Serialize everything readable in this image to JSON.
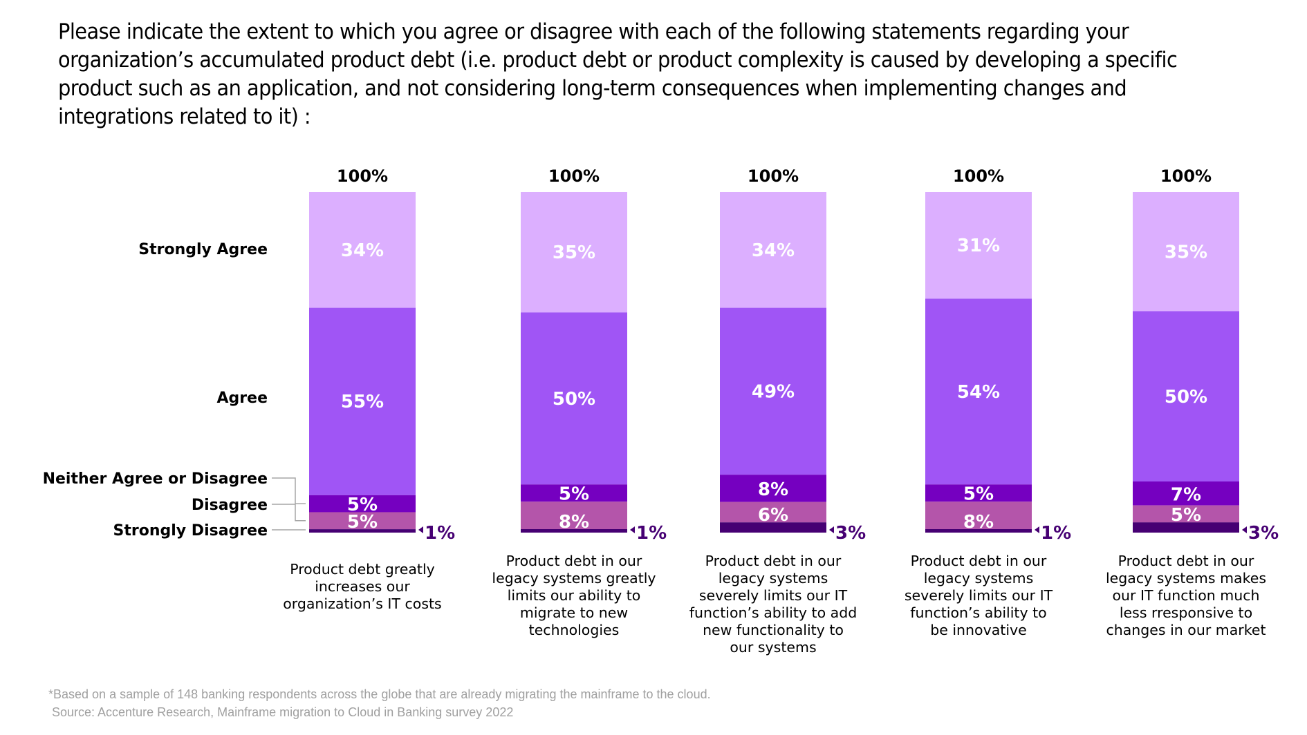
{
  "chart_data": {
    "type": "bar",
    "stacked": true,
    "orientation": "vertical",
    "title": "Please indicate the extent to which you agree or disagree with each of the following statements regarding your organization’s accumulated product debt (i.e. product debt or product complexity is caused by developing a specific product such as an application, and not considering long-term consequences when implementing changes and integrations related to it) :",
    "xlabel": "",
    "ylabel": "",
    "ylim": [
      0,
      100
    ],
    "grid": false,
    "legend": "left (category labels beside first bar)",
    "categories": [
      "Product debt greatly increases our organization’s IT costs",
      "Product debt in our legacy systems greatly limits our ability to migrate to new technologies",
      "Product debt in our legacy systems severely limits our IT function’s ability to add new functionality to our systems",
      "Product debt in our legacy systems severely limits our IT function’s ability to be innovative",
      "Product debt in our legacy systems makes our IT function much less rresponsive to changes in our market"
    ],
    "category_lines": [
      [
        "Product debt greatly",
        "increases our",
        "organization’s IT costs"
      ],
      [
        "Product debt in our",
        "legacy systems greatly",
        "limits our ability to",
        "migrate to new",
        "technologies"
      ],
      [
        "Product debt in our",
        "legacy systems",
        "severely limits our IT",
        "function’s ability to add",
        "new functionality to",
        "our systems"
      ],
      [
        "Product debt in our",
        "legacy systems",
        "severely limits our IT",
        "function’s ability to",
        "be innovative"
      ],
      [
        "Product debt in our",
        "legacy systems makes",
        "our IT function much",
        "less rresponsive to",
        "changes in our market"
      ]
    ],
    "totals": [
      "100%",
      "100%",
      "100%",
      "100%",
      "100%"
    ],
    "series": [
      {
        "name": "Strongly Agree",
        "color": "#dcafff",
        "values": [
          34,
          35,
          34,
          31,
          35
        ]
      },
      {
        "name": "Agree",
        "color": "#a055f5",
        "values": [
          55,
          50,
          49,
          54,
          50
        ]
      },
      {
        "name": "Neither Agree or Disagree",
        "color": "#7500c0",
        "values": [
          5,
          5,
          8,
          5,
          7
        ]
      },
      {
        "name": "Disagree",
        "color": "#b455aa",
        "values": [
          5,
          8,
          6,
          8,
          5
        ]
      },
      {
        "name": "Strongly Disagree",
        "color": "#460073",
        "values": [
          1,
          1,
          3,
          1,
          3
        ]
      }
    ],
    "value_suffix": "%"
  },
  "footnote": {
    "line1": "*Based on a sample of 148 banking respondents across the globe that are already migrating the mainframe to the cloud.",
    "line2": " Source: Accenture Research, Mainframe migration to Cloud in Banking survey 2022"
  }
}
